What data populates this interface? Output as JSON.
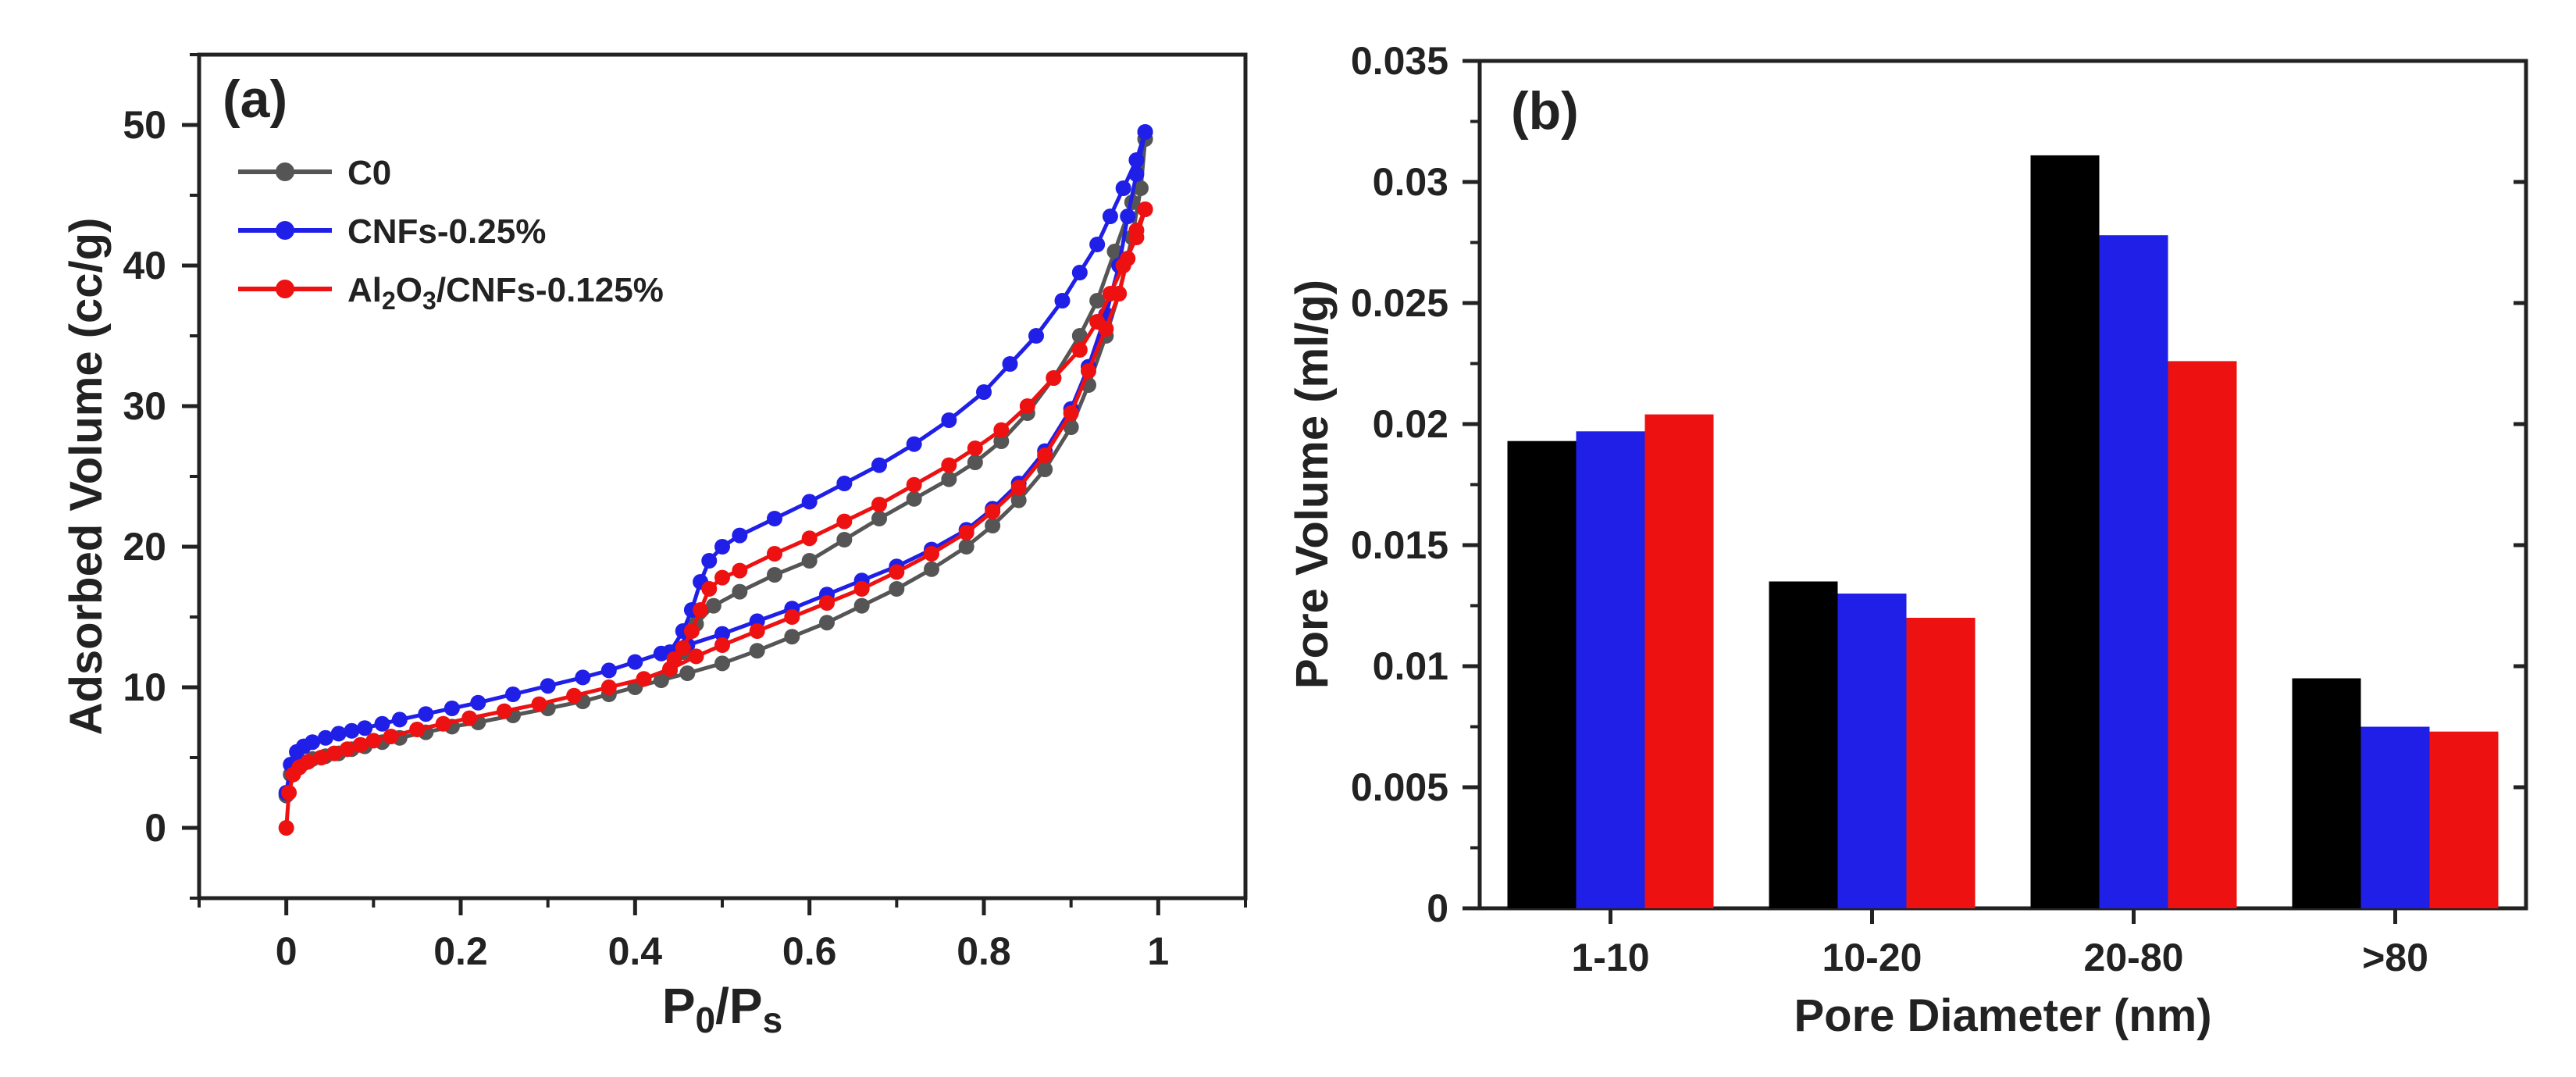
{
  "chart_data": [
    {
      "type": "line",
      "panel_label": "(a)",
      "xlabel": {
        "main": "P",
        "sub1": "0",
        "mid": "/P",
        "sub2": "s"
      },
      "ylabel": "Adsorbed Volume (cc/g)",
      "xlim": [
        -0.1,
        1.1
      ],
      "ylim": [
        -5,
        55
      ],
      "x_ticks": [
        0,
        0.2,
        0.4,
        0.6,
        0.8,
        1
      ],
      "x_tick_labels": [
        "0",
        "0.2",
        "0.4",
        "0.6",
        "0.8",
        "1"
      ],
      "y_ticks": [
        0,
        10,
        20,
        30,
        40,
        50
      ],
      "y_tick_labels": [
        "0",
        "10",
        "20",
        "30",
        "40",
        "50"
      ],
      "grid": false,
      "legend_position": "top-left",
      "series": [
        {
          "name": "C0",
          "name_parts": [
            "C0"
          ],
          "color": "#555555",
          "adsorption": [
            [
              0,
              2.3
            ],
            [
              0.005,
              3.8
            ],
            [
              0.012,
              4.3
            ],
            [
              0.02,
              4.6
            ],
            [
              0.03,
              4.9
            ],
            [
              0.045,
              5.1
            ],
            [
              0.06,
              5.3
            ],
            [
              0.075,
              5.6
            ],
            [
              0.09,
              5.8
            ],
            [
              0.11,
              6.1
            ],
            [
              0.13,
              6.4
            ],
            [
              0.16,
              6.8
            ],
            [
              0.19,
              7.2
            ],
            [
              0.22,
              7.5
            ],
            [
              0.26,
              8.0
            ],
            [
              0.3,
              8.5
            ],
            [
              0.34,
              9.0
            ],
            [
              0.37,
              9.5
            ],
            [
              0.4,
              10.0
            ],
            [
              0.43,
              10.5
            ],
            [
              0.46,
              11.0
            ],
            [
              0.5,
              11.7
            ],
            [
              0.54,
              12.6
            ],
            [
              0.58,
              13.6
            ],
            [
              0.62,
              14.6
            ],
            [
              0.66,
              15.8
            ],
            [
              0.7,
              17.0
            ],
            [
              0.74,
              18.4
            ],
            [
              0.78,
              20.0
            ],
            [
              0.81,
              21.5
            ],
            [
              0.84,
              23.3
            ],
            [
              0.87,
              25.5
            ],
            [
              0.9,
              28.5
            ],
            [
              0.92,
              31.5
            ],
            [
              0.94,
              35.0
            ],
            [
              0.955,
              38.0
            ],
            [
              0.97,
              42.0
            ],
            [
              0.98,
              45.5
            ],
            [
              0.985,
              49.0
            ]
          ],
          "desorption": [
            [
              0.985,
              49.0
            ],
            [
              0.97,
              44.5
            ],
            [
              0.95,
              41.0
            ],
            [
              0.93,
              37.5
            ],
            [
              0.91,
              35.0
            ],
            [
              0.88,
              32.0
            ],
            [
              0.85,
              29.5
            ],
            [
              0.82,
              27.5
            ],
            [
              0.79,
              26.0
            ],
            [
              0.76,
              24.8
            ],
            [
              0.72,
              23.4
            ],
            [
              0.68,
              22.0
            ],
            [
              0.64,
              20.5
            ],
            [
              0.6,
              19.0
            ],
            [
              0.56,
              18.0
            ],
            [
              0.52,
              16.8
            ],
            [
              0.49,
              15.8
            ],
            [
              0.47,
              14.5
            ],
            [
              0.455,
              12.5
            ],
            [
              0.44,
              11.2
            ]
          ]
        },
        {
          "name": "CNFs-0.25%",
          "name_parts": [
            "CNFs-0.25%"
          ],
          "color": "#1f1fe8",
          "adsorption": [
            [
              0,
              2.5
            ],
            [
              0.005,
              4.5
            ],
            [
              0.012,
              5.4
            ],
            [
              0.02,
              5.8
            ],
            [
              0.03,
              6.1
            ],
            [
              0.045,
              6.4
            ],
            [
              0.06,
              6.7
            ],
            [
              0.075,
              6.9
            ],
            [
              0.09,
              7.1
            ],
            [
              0.11,
              7.4
            ],
            [
              0.13,
              7.7
            ],
            [
              0.16,
              8.1
            ],
            [
              0.19,
              8.5
            ],
            [
              0.22,
              8.9
            ],
            [
              0.26,
              9.5
            ],
            [
              0.3,
              10.1
            ],
            [
              0.34,
              10.7
            ],
            [
              0.37,
              11.2
            ],
            [
              0.4,
              11.8
            ],
            [
              0.43,
              12.4
            ],
            [
              0.46,
              13.0
            ],
            [
              0.5,
              13.8
            ],
            [
              0.54,
              14.7
            ],
            [
              0.58,
              15.6
            ],
            [
              0.62,
              16.6
            ],
            [
              0.66,
              17.6
            ],
            [
              0.7,
              18.6
            ],
            [
              0.74,
              19.8
            ],
            [
              0.78,
              21.2
            ],
            [
              0.81,
              22.7
            ],
            [
              0.84,
              24.5
            ],
            [
              0.87,
              26.8
            ],
            [
              0.9,
              29.8
            ],
            [
              0.92,
              32.8
            ],
            [
              0.94,
              36.5
            ],
            [
              0.955,
              40.0
            ],
            [
              0.965,
              43.5
            ],
            [
              0.975,
              46.5
            ],
            [
              0.985,
              49.5
            ]
          ],
          "desorption": [
            [
              0.985,
              49.5
            ],
            [
              0.975,
              47.5
            ],
            [
              0.96,
              45.5
            ],
            [
              0.945,
              43.5
            ],
            [
              0.93,
              41.5
            ],
            [
              0.91,
              39.5
            ],
            [
              0.89,
              37.5
            ],
            [
              0.86,
              35.0
            ],
            [
              0.83,
              33.0
            ],
            [
              0.8,
              31.0
            ],
            [
              0.76,
              29.0
            ],
            [
              0.72,
              27.3
            ],
            [
              0.68,
              25.8
            ],
            [
              0.64,
              24.5
            ],
            [
              0.6,
              23.2
            ],
            [
              0.56,
              22.0
            ],
            [
              0.52,
              20.8
            ],
            [
              0.5,
              20.0
            ],
            [
              0.485,
              19.0
            ],
            [
              0.475,
              17.5
            ],
            [
              0.465,
              15.5
            ],
            [
              0.455,
              14.0
            ],
            [
              0.44,
              12.5
            ]
          ]
        },
        {
          "name": "Al2O3/CNFs-0.125%",
          "name_parts": [
            "Al",
            "2",
            "O",
            "3",
            "/CNFs-0.125%"
          ],
          "color": "#ee1111",
          "adsorption": [
            [
              0,
              0
            ],
            [
              0.003,
              2.5
            ],
            [
              0.008,
              3.8
            ],
            [
              0.015,
              4.3
            ],
            [
              0.025,
              4.7
            ],
            [
              0.04,
              5.0
            ],
            [
              0.055,
              5.3
            ],
            [
              0.07,
              5.6
            ],
            [
              0.085,
              5.9
            ],
            [
              0.1,
              6.2
            ],
            [
              0.12,
              6.5
            ],
            [
              0.15,
              7.0
            ],
            [
              0.18,
              7.4
            ],
            [
              0.21,
              7.8
            ],
            [
              0.25,
              8.3
            ],
            [
              0.29,
              8.8
            ],
            [
              0.33,
              9.4
            ],
            [
              0.37,
              10.0
            ],
            [
              0.41,
              10.6
            ],
            [
              0.44,
              11.3
            ],
            [
              0.47,
              12.2
            ],
            [
              0.5,
              13.0
            ],
            [
              0.54,
              14.0
            ],
            [
              0.58,
              15.0
            ],
            [
              0.62,
              16.0
            ],
            [
              0.66,
              17.0
            ],
            [
              0.7,
              18.2
            ],
            [
              0.74,
              19.5
            ],
            [
              0.78,
              21.0
            ],
            [
              0.81,
              22.5
            ],
            [
              0.84,
              24.2
            ],
            [
              0.87,
              26.5
            ],
            [
              0.9,
              29.5
            ],
            [
              0.92,
              32.5
            ],
            [
              0.94,
              35.5
            ],
            [
              0.955,
              38.0
            ],
            [
              0.965,
              40.5
            ],
            [
              0.975,
              42.5
            ],
            [
              0.985,
              44.0
            ]
          ],
          "desorption": [
            [
              0.985,
              44.0
            ],
            [
              0.975,
              42.0
            ],
            [
              0.96,
              40.0
            ],
            [
              0.945,
              38.0
            ],
            [
              0.93,
              36.0
            ],
            [
              0.91,
              34.0
            ],
            [
              0.88,
              32.0
            ],
            [
              0.85,
              30.0
            ],
            [
              0.82,
              28.3
            ],
            [
              0.79,
              27.0
            ],
            [
              0.76,
              25.8
            ],
            [
              0.72,
              24.4
            ],
            [
              0.68,
              23.0
            ],
            [
              0.64,
              21.8
            ],
            [
              0.6,
              20.6
            ],
            [
              0.56,
              19.5
            ],
            [
              0.52,
              18.3
            ],
            [
              0.5,
              17.8
            ],
            [
              0.485,
              17.0
            ],
            [
              0.475,
              15.5
            ],
            [
              0.465,
              14.0
            ],
            [
              0.455,
              12.8
            ],
            [
              0.445,
              12.0
            ]
          ]
        }
      ]
    },
    {
      "type": "bar",
      "panel_label": "(b)",
      "xlabel": "Pore Diameter (nm)",
      "ylabel": "Pore Volume (ml/g)",
      "categories": [
        "1-10",
        "10-20",
        "20-80",
        ">80"
      ],
      "ylim": [
        0,
        0.035
      ],
      "y_ticks": [
        0,
        0.005,
        0.01,
        0.015,
        0.02,
        0.025,
        0.03,
        0.035
      ],
      "y_tick_labels": [
        "0",
        "0.005",
        "0.01",
        "0.015",
        "0.02",
        "0.025",
        "0.03",
        "0.035"
      ],
      "grid": false,
      "series": [
        {
          "color": "#000000",
          "values": [
            0.0193,
            0.0135,
            0.0311,
            0.0095
          ]
        },
        {
          "color": "#1f1fe8",
          "values": [
            0.0197,
            0.013,
            0.0278,
            0.0075
          ]
        },
        {
          "color": "#ee1111",
          "values": [
            0.0204,
            0.012,
            0.0226,
            0.0073
          ]
        }
      ]
    }
  ]
}
